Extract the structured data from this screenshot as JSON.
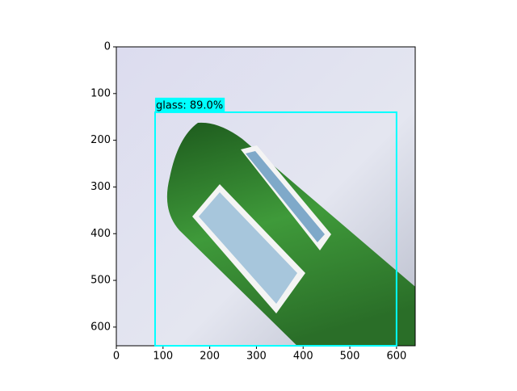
{
  "chart_data": {
    "type": "image",
    "xlim": [
      0,
      640
    ],
    "ylim": [
      640,
      0
    ],
    "xticks": [
      0,
      100,
      200,
      300,
      400,
      500,
      600
    ],
    "yticks": [
      0,
      100,
      200,
      300,
      400,
      500,
      600
    ],
    "box": {
      "x0": 83,
      "y0": 140,
      "x1": 600,
      "y1": 640,
      "label": "glass: 89.0%",
      "color": "#00ffff"
    }
  }
}
